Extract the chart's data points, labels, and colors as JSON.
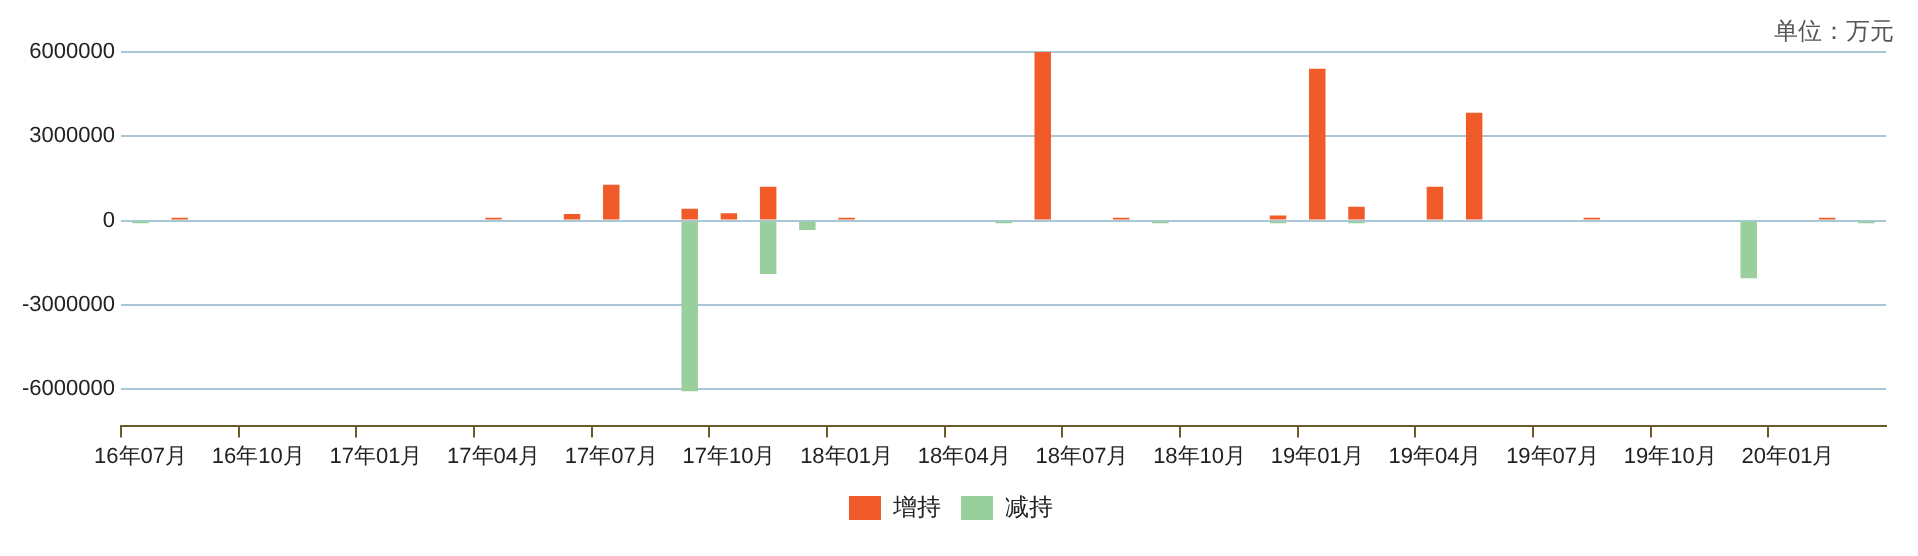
{
  "chart_data": {
    "type": "bar",
    "stacked": true,
    "annotations": [
      "单位：万元"
    ],
    "categories": [
      "16年07月",
      null,
      null,
      "16年10月",
      null,
      null,
      "17年01月",
      null,
      null,
      "17年04月",
      null,
      null,
      "17年07月",
      null,
      null,
      "17年10月",
      null,
      null,
      "18年01月",
      null,
      null,
      "18年04月",
      null,
      null,
      "18年07月",
      null,
      null,
      "18年10月",
      null,
      null,
      "19年01月",
      null,
      null,
      "19年04月",
      null,
      null,
      "19年07月",
      null,
      null,
      "19年10月",
      null,
      null,
      "20年01月",
      null,
      null
    ],
    "series": [
      {
        "name": "增持",
        "color": "#f15a29",
        "values": [
          null,
          100000,
          null,
          null,
          null,
          null,
          null,
          null,
          null,
          100000,
          null,
          230000,
          1270000,
          null,
          420000,
          260000,
          1200000,
          null,
          100000,
          null,
          null,
          null,
          null,
          6000000,
          null,
          100000,
          null,
          null,
          null,
          180000,
          5400000,
          490000,
          null,
          1200000,
          3840000,
          null,
          null,
          100000,
          null,
          null,
          null,
          null,
          null,
          100000,
          null
        ]
      },
      {
        "name": "减持",
        "color": "#98cf9c",
        "values": [
          -100000,
          null,
          null,
          null,
          null,
          null,
          null,
          null,
          null,
          null,
          null,
          null,
          null,
          null,
          -6080000,
          null,
          -1900000,
          -340000,
          null,
          null,
          null,
          null,
          -100000,
          null,
          null,
          null,
          -100000,
          null,
          null,
          -100000,
          null,
          -100000,
          null,
          null,
          null,
          null,
          null,
          null,
          null,
          null,
          null,
          -2050000,
          null,
          null,
          -100000
        ]
      }
    ],
    "ylim": [
      -7300000,
      6000000
    ],
    "yticks": [
      -6000000,
      -3000000,
      0,
      3000000,
      6000000
    ],
    "grid": "y",
    "legend": "bottom"
  }
}
